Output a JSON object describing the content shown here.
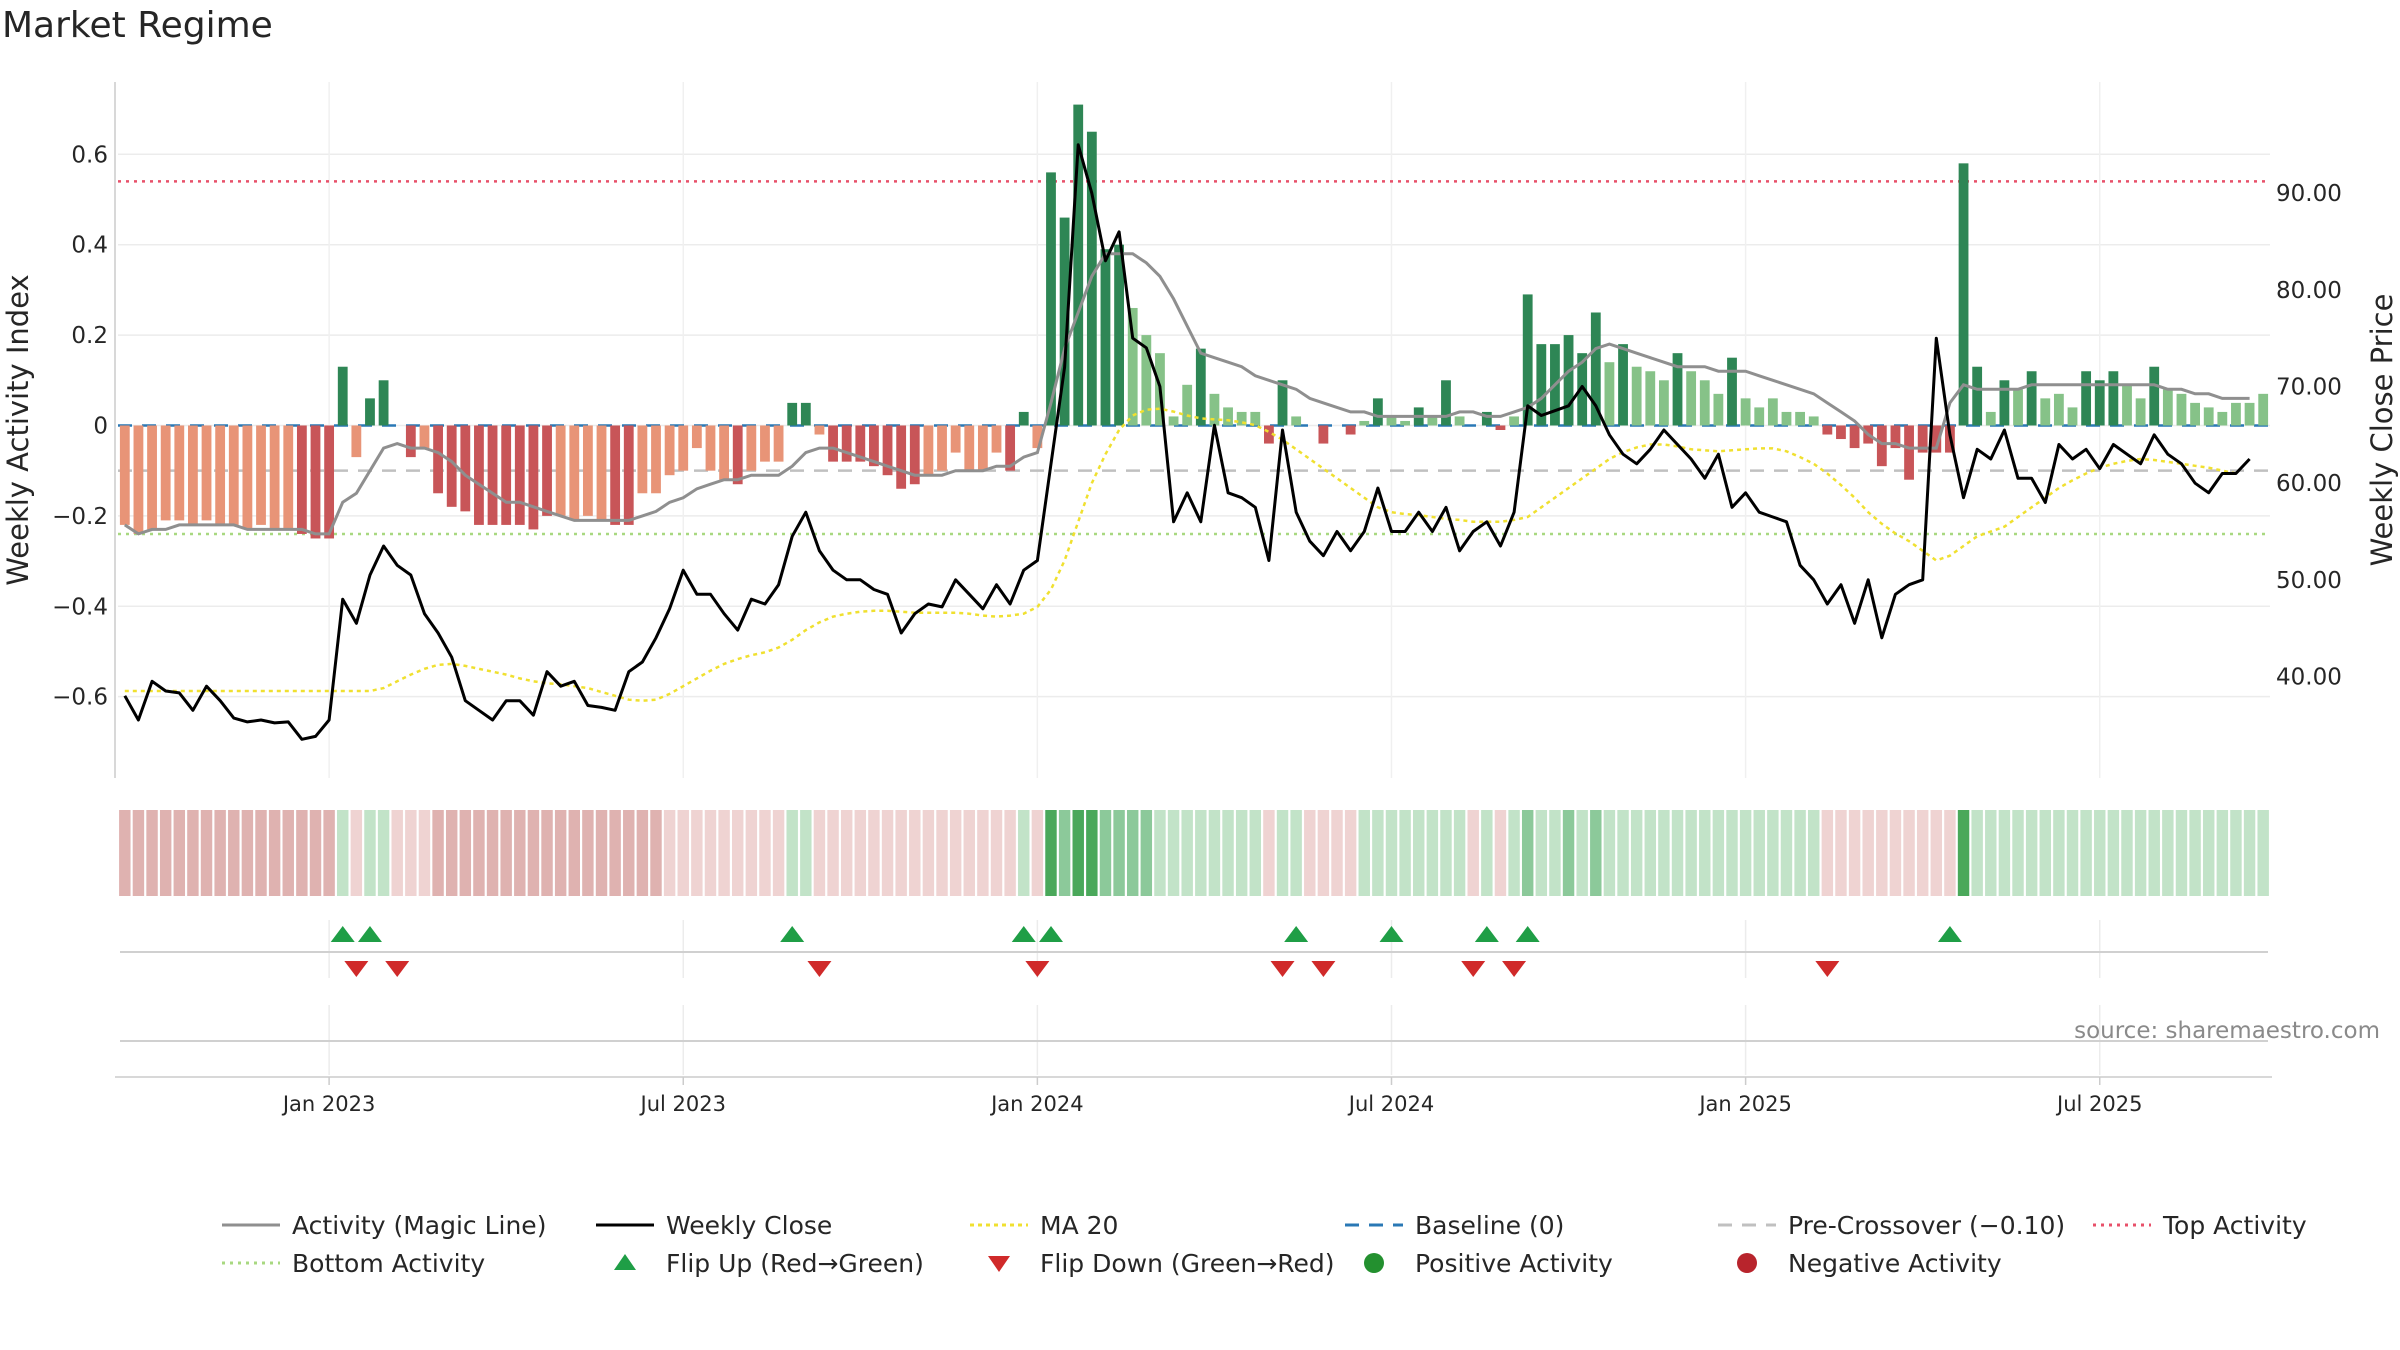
{
  "chart_data": {
    "type": "bar",
    "title": "Market Regime",
    "ylabel_left": "Weekly Activity Index",
    "ylabel_right": "Weekly Close Price",
    "source": "source: sharemaestro.com",
    "grid": true,
    "legend_placement": "bottom",
    "ylim_left": [
      -0.78,
      0.76
    ],
    "ylim_right": [
      29.5,
      101.5
    ],
    "left_ticks": [
      {
        "v": 0.6,
        "label": "0.6"
      },
      {
        "v": 0.4,
        "label": "0.4"
      },
      {
        "v": 0.2,
        "label": "0.2"
      },
      {
        "v": 0,
        "label": "0"
      },
      {
        "v": -0.2,
        "label": "−0.2"
      },
      {
        "v": -0.4,
        "label": "−0.4"
      },
      {
        "v": -0.6,
        "label": "−0.6"
      }
    ],
    "right_ticks": [
      {
        "v": 90,
        "label": "90.00"
      },
      {
        "v": 80,
        "label": "80.00"
      },
      {
        "v": 70,
        "label": "70.00"
      },
      {
        "v": 60,
        "label": "60.00"
      },
      {
        "v": 50,
        "label": "50.00"
      },
      {
        "v": 40,
        "label": "40.00"
      }
    ],
    "x_ticks": [
      {
        "week": 15,
        "label": "Jan 2023"
      },
      {
        "week": 41,
        "label": "Jul 2023"
      },
      {
        "week": 67,
        "label": "Jan 2024"
      },
      {
        "week": 93,
        "label": "Jul 2024"
      },
      {
        "week": 119,
        "label": "Jan 2025"
      },
      {
        "week": 145,
        "label": "Jul 2025"
      }
    ],
    "thresholds": {
      "top": 0.54,
      "bottom": -0.24,
      "pre_crossover": -0.1,
      "baseline": 0
    },
    "activity": [
      -0.22,
      -0.24,
      -0.23,
      -0.21,
      -0.21,
      -0.22,
      -0.21,
      -0.22,
      -0.22,
      -0.23,
      -0.22,
      -0.23,
      -0.23,
      -0.24,
      -0.25,
      -0.25,
      0.13,
      -0.07,
      0.06,
      0.1,
      0,
      -0.07,
      -0.05,
      -0.15,
      -0.18,
      -0.19,
      -0.22,
      -0.22,
      -0.22,
      -0.22,
      -0.23,
      -0.2,
      -0.2,
      -0.21,
      -0.2,
      -0.21,
      -0.22,
      -0.22,
      -0.15,
      -0.15,
      -0.11,
      -0.1,
      -0.05,
      -0.1,
      -0.12,
      -0.13,
      -0.1,
      -0.08,
      -0.08,
      0.05,
      0.05,
      -0.02,
      -0.08,
      -0.08,
      -0.08,
      -0.09,
      -0.11,
      -0.14,
      -0.13,
      -0.11,
      -0.1,
      -0.06,
      -0.1,
      -0.1,
      -0.06,
      -0.1,
      0.03,
      -0.05,
      0.56,
      0.46,
      0.71,
      0.65,
      0.39,
      0.4,
      0.26,
      0.2,
      0.16,
      0.02,
      0.09,
      0.17,
      0.07,
      0.04,
      0.03,
      0.03,
      -0.04,
      0.1,
      0.02,
      0,
      -0.04,
      0,
      -0.02,
      0.01,
      0.06,
      0.02,
      0.01,
      0.04,
      0.02,
      0.1,
      0.02,
      0,
      0.03,
      -0.01,
      0.02,
      0.29,
      0.18,
      0.18,
      0.2,
      0.16,
      0.25,
      0.14,
      0.18,
      0.13,
      0.12,
      0.1,
      0.16,
      0.12,
      0.1,
      0.07,
      0.15,
      0.06,
      0.04,
      0.06,
      0.03,
      0.03,
      0.02,
      -0.02,
      -0.03,
      -0.05,
      -0.04,
      -0.09,
      -0.05,
      -0.12,
      -0.06,
      -0.06,
      -0.06,
      0.58,
      0.13,
      0.03,
      0.1,
      0.08,
      0.12,
      0.06,
      0.07,
      0.04,
      0.12,
      0.1,
      0.12,
      0.09,
      0.06,
      0.13,
      0.08,
      0.07,
      0.05,
      0.04,
      0.03,
      0.05,
      0.05,
      0.07
    ],
    "magic_line": [
      -0.22,
      -0.24,
      -0.23,
      -0.23,
      -0.22,
      -0.22,
      -0.22,
      -0.22,
      -0.22,
      -0.23,
      -0.23,
      -0.23,
      -0.23,
      -0.23,
      -0.24,
      -0.24,
      -0.17,
      -0.15,
      -0.1,
      -0.05,
      -0.04,
      -0.05,
      -0.05,
      -0.06,
      -0.08,
      -0.11,
      -0.13,
      -0.15,
      -0.17,
      -0.17,
      -0.18,
      -0.19,
      -0.2,
      -0.21,
      -0.21,
      -0.21,
      -0.21,
      -0.21,
      -0.2,
      -0.19,
      -0.17,
      -0.16,
      -0.14,
      -0.13,
      -0.12,
      -0.12,
      -0.11,
      -0.11,
      -0.11,
      -0.09,
      -0.06,
      -0.05,
      -0.05,
      -0.06,
      -0.07,
      -0.08,
      -0.09,
      -0.1,
      -0.11,
      -0.11,
      -0.11,
      -0.1,
      -0.1,
      -0.1,
      -0.09,
      -0.09,
      -0.07,
      -0.06,
      0.05,
      0.17,
      0.25,
      0.33,
      0.38,
      0.38,
      0.38,
      0.36,
      0.33,
      0.28,
      0.22,
      0.16,
      0.15,
      0.14,
      0.13,
      0.11,
      0.1,
      0.09,
      0.08,
      0.06,
      0.05,
      0.04,
      0.03,
      0.03,
      0.02,
      0.02,
      0.02,
      0.02,
      0.02,
      0.02,
      0.03,
      0.03,
      0.02,
      0.02,
      0.03,
      0.04,
      0.06,
      0.09,
      0.12,
      0.14,
      0.17,
      0.18,
      0.17,
      0.16,
      0.15,
      0.14,
      0.13,
      0.13,
      0.13,
      0.12,
      0.12,
      0.12,
      0.11,
      0.1,
      0.09,
      0.08,
      0.07,
      0.05,
      0.03,
      0.01,
      -0.02,
      -0.04,
      -0.04,
      -0.05,
      -0.05,
      -0.05,
      0.05,
      0.09,
      0.08,
      0.08,
      0.08,
      0.08,
      0.09,
      0.09,
      0.09,
      0.09,
      0.09,
      0.09,
      0.09,
      0.09,
      0.09,
      0.09,
      0.08,
      0.08,
      0.07,
      0.07,
      0.06,
      0.06,
      0.06
    ],
    "weekly_close": [
      38,
      35.5,
      39.5,
      38.5,
      38.3,
      36.5,
      39,
      37.5,
      35.7,
      35.3,
      35.5,
      35.2,
      35.3,
      33.5,
      33.8,
      35.5,
      48,
      45.5,
      50.5,
      53.5,
      51.5,
      50.5,
      46.5,
      44.5,
      42,
      37.5,
      36.5,
      35.5,
      37.5,
      37.5,
      36,
      40.5,
      39,
      39.5,
      37,
      36.8,
      36.5,
      40.5,
      41.5,
      44,
      47,
      51,
      48.5,
      48.5,
      46.5,
      44.8,
      48,
      47.5,
      49.5,
      54.5,
      57,
      53,
      51,
      50,
      50,
      49,
      48.5,
      44.5,
      46.5,
      47.5,
      47.2,
      50,
      48.5,
      47,
      49.5,
      47.5,
      51,
      52,
      62,
      72,
      95,
      90,
      83,
      86,
      75,
      74,
      70,
      56,
      59,
      56,
      66,
      59,
      58.5,
      57.5,
      52,
      65.5,
      57,
      54,
      52.5,
      55,
      53,
      55,
      59.5,
      55,
      55,
      57,
      55,
      57.5,
      53,
      55,
      56,
      53.5,
      57,
      68,
      67,
      67.5,
      68,
      70,
      68,
      65,
      63,
      62,
      63.5,
      65.5,
      64,
      62.5,
      60.5,
      63,
      57.5,
      59,
      57,
      56.5,
      56,
      51.5,
      50,
      47.5,
      49.5,
      45.5,
      50,
      44,
      48.5,
      49.5,
      50,
      75,
      65,
      58.5,
      63.5,
      62.5,
      65.5,
      60.5,
      60.5,
      58,
      64,
      62.5,
      63.5,
      61.5,
      64,
      63,
      62,
      65,
      63,
      62,
      60,
      59,
      61,
      61,
      62.5
    ],
    "ma20": [
      38.5,
      38.5,
      38.5,
      38.5,
      38.5,
      38.5,
      38.5,
      38.5,
      38.5,
      38.5,
      38.5,
      38.5,
      38.5,
      38.5,
      38.5,
      38.5,
      38.5,
      38.5,
      38.5,
      38.8,
      39.5,
      40.2,
      40.8,
      41.2,
      41.3,
      41.1,
      40.8,
      40.5,
      40.2,
      39.8,
      39.5,
      39.3,
      39.2,
      39,
      38.8,
      38.4,
      38,
      37.6,
      37.5,
      37.6,
      38.2,
      39,
      39.8,
      40.6,
      41.3,
      41.8,
      42.2,
      42.5,
      43,
      43.8,
      44.8,
      45.6,
      46.2,
      46.5,
      46.7,
      46.8,
      46.8,
      46.7,
      46.6,
      46.6,
      46.6,
      46.6,
      46.5,
      46.3,
      46.2,
      46.3,
      46.5,
      47.2,
      49,
      52,
      56,
      60,
      63,
      65.5,
      67,
      67.6,
      67.7,
      67.4,
      67,
      66.7,
      66.6,
      66.5,
      66.3,
      66,
      65.3,
      64.5,
      63.5,
      62.5,
      61.5,
      60.5,
      59.5,
      58.5,
      57.5,
      57,
      56.8,
      56.7,
      56.5,
      56.3,
      56.2,
      56,
      56,
      56,
      56.2,
      56.5,
      57.5,
      58.5,
      59.5,
      60.5,
      61.5,
      62.5,
      63.2,
      63.7,
      64,
      64,
      63.8,
      63.5,
      63.4,
      63.3,
      63.4,
      63.5,
      63.6,
      63.6,
      63.3,
      62.7,
      62,
      61,
      59.8,
      58.5,
      57,
      55.8,
      54.8,
      54,
      53,
      52,
      52.5,
      53.5,
      54.5,
      55,
      55.5,
      56.5,
      57.5,
      58.5,
      59.5,
      60.3,
      61,
      61.6,
      62,
      62.3,
      62.5,
      62.4,
      62.2,
      62,
      61.8,
      61.6,
      61.3,
      61
    ],
    "flip_up_weeks": [
      16,
      18,
      49,
      66,
      68,
      86,
      93,
      100,
      103,
      134
    ],
    "flip_down_weeks": [
      17,
      20,
      51,
      67,
      85,
      88,
      99,
      102,
      125
    ],
    "legend": [
      "Activity (Magic Line)",
      "Weekly Close",
      "MA 20",
      "Baseline (0)",
      "Pre-Crossover (−0.10)",
      "Top Activity",
      "Bottom Activity",
      "Flip Up (Red→Green)",
      "Flip Down (Green→Red)",
      "Positive Activity",
      "Negative Activity"
    ],
    "colors": {
      "pos_strong": "#2e8655",
      "pos_weak": "#86c288",
      "neg_strong": "#c85558",
      "neg_weak": "#e89477",
      "magic": "#8f8f8f",
      "close": "#000000",
      "ma20": "#f0e030",
      "baseline": "#2a78b5",
      "pre": "#c0c0c0",
      "top": "#e8506a",
      "bottom": "#a8d880",
      "flip_up": "#1f9e46",
      "flip_down": "#d02a2a",
      "pos_dot": "#23902f",
      "neg_dot": "#b8242c",
      "strip_red": "#dfb2b0",
      "strip_lightred": "#efd3d2",
      "strip_green": "#4aa85a",
      "strip_midgreen": "#8cc99a",
      "strip_lightgreen": "#c2e3c8"
    }
  }
}
